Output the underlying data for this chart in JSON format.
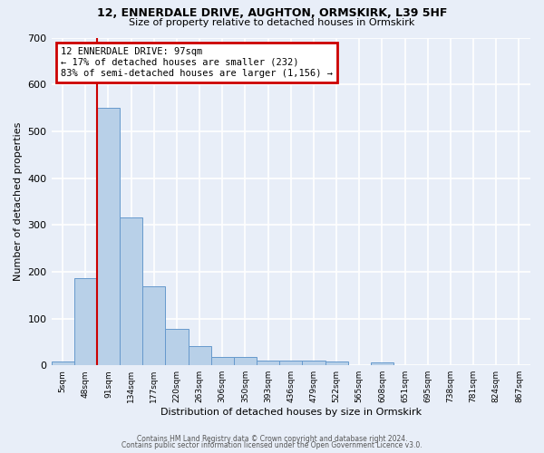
{
  "title1": "12, ENNERDALE DRIVE, AUGHTON, ORMSKIRK, L39 5HF",
  "title2": "Size of property relative to detached houses in Ormskirk",
  "xlabel": "Distribution of detached houses by size in Ormskirk",
  "ylabel": "Number of detached properties",
  "bar_labels": [
    "5sqm",
    "48sqm",
    "91sqm",
    "134sqm",
    "177sqm",
    "220sqm",
    "263sqm",
    "306sqm",
    "350sqm",
    "393sqm",
    "436sqm",
    "479sqm",
    "522sqm",
    "565sqm",
    "608sqm",
    "651sqm",
    "695sqm",
    "738sqm",
    "781sqm",
    "824sqm",
    "867sqm"
  ],
  "bar_values": [
    8,
    187,
    550,
    315,
    168,
    77,
    42,
    17,
    17,
    10,
    11,
    11,
    8,
    0,
    6,
    0,
    0,
    0,
    0,
    0,
    0
  ],
  "bar_color": "#b8d0e8",
  "bar_edge_color": "#6699cc",
  "bg_color": "#e8eef8",
  "grid_color": "#ffffff",
  "property_line_x": 1.5,
  "annotation_text": "12 ENNERDALE DRIVE: 97sqm\n← 17% of detached houses are smaller (232)\n83% of semi-detached houses are larger (1,156) →",
  "annotation_box_color": "#ffffff",
  "annotation_box_edge_color": "#cc0000",
  "property_line_color": "#cc0000",
  "ylim": [
    0,
    700
  ],
  "yticks": [
    0,
    100,
    200,
    300,
    400,
    500,
    600,
    700
  ],
  "footer_text1": "Contains HM Land Registry data © Crown copyright and database right 2024.",
  "footer_text2": "Contains public sector information licensed under the Open Government Licence v3.0."
}
